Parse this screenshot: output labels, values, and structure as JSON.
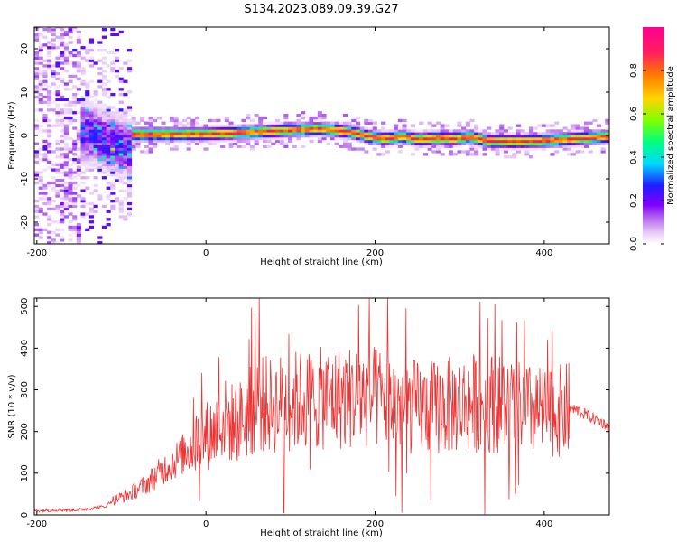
{
  "title": "S134.2023.089.09.39.G27",
  "colors": {
    "snr_line": "#ee3333",
    "colormap": [
      "#ffffff",
      "#e9ccf6",
      "#b366ee",
      "#7f00ff",
      "#1e1eff",
      "#00d9ff",
      "#00ff80",
      "#80ff00",
      "#ffd400",
      "#ff7a00",
      "#ff2060",
      "#ff0090"
    ]
  },
  "chart_data": [
    {
      "type": "heatmap",
      "title": "S134.2023.089.09.39.G27",
      "xlabel": "Height of straight line (km)",
      "ylabel": "Frequency (Hz)",
      "xlim": [
        -203,
        477
      ],
      "ylim": [
        -25,
        25
      ],
      "x_ticks": [
        -200,
        0,
        200,
        400
      ],
      "y_ticks": [
        -20,
        -10,
        0,
        10,
        20
      ],
      "colorbar": {
        "label": "Normalized spectral amplitude",
        "range": [
          0,
          1
        ],
        "ticks": [
          0.0,
          0.2,
          0.4,
          0.6,
          0.8
        ]
      },
      "ridge_frequency": {
        "x": [
          -110,
          -100,
          -90,
          -50,
          0,
          50,
          100,
          130,
          150,
          170,
          190,
          210,
          230,
          250,
          270,
          290,
          310,
          330,
          360,
          390,
          420,
          450,
          477
        ],
        "y": [
          0.2,
          0.0,
          0.0,
          0.0,
          0.1,
          0.5,
          1.0,
          1.3,
          1.0,
          0.5,
          -0.5,
          -1.0,
          -0.5,
          -1.2,
          -0.8,
          -1.0,
          -0.6,
          -1.5,
          -1.6,
          -1.5,
          -1.2,
          -0.8,
          -0.5
        ]
      }
    },
    {
      "type": "line",
      "xlabel": "Height of straight line (km)",
      "ylabel": "SNR (10 * v/v)",
      "xlim": [
        -203,
        477
      ],
      "ylim": [
        0,
        520
      ],
      "x_ticks": [
        -200,
        0,
        200,
        400
      ],
      "y_ticks": [
        0,
        100,
        200,
        300,
        400,
        500
      ],
      "x": [
        -203,
        -180,
        -150,
        -120,
        -110,
        -90,
        -70,
        -50,
        -30,
        -15,
        0,
        10,
        20,
        30,
        40,
        50,
        60,
        70,
        80,
        90,
        100,
        110,
        120,
        130,
        140,
        150,
        160,
        180,
        200,
        220,
        240,
        260,
        280,
        300,
        320,
        340,
        360,
        380,
        400,
        420,
        430,
        440,
        450,
        460,
        470,
        477
      ],
      "y": [
        10,
        12,
        12,
        20,
        35,
        50,
        75,
        110,
        140,
        170,
        190,
        200,
        230,
        220,
        225,
        240,
        270,
        265,
        260,
        270,
        270,
        275,
        275,
        275,
        280,
        280,
        280,
        285,
        280,
        270,
        260,
        255,
        260,
        265,
        270,
        270,
        260,
        250,
        245,
        250,
        255,
        250,
        240,
        230,
        220,
        210
      ]
    }
  ]
}
